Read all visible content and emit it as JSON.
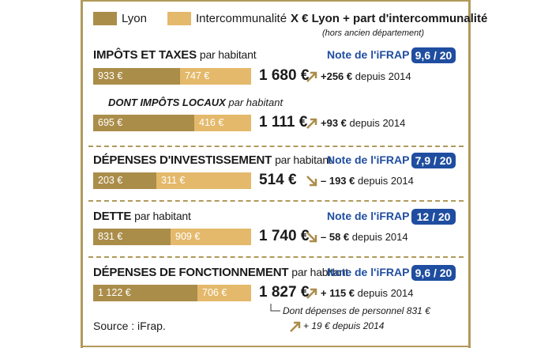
{
  "legend": {
    "lyon_label": "Lyon",
    "interco_label": "Intercommunalité",
    "x_note": "X € Lyon + part d'intercommunalité",
    "x_note_sub": "(hors ancien département)"
  },
  "colors": {
    "lyon": "#ab8d4a",
    "interco": "#e4b96b",
    "accent": "#1f4ea0",
    "frame": "#b09a5a"
  },
  "note_label": "Note de l'iFRAP",
  "sections": [
    {
      "title": "IMPÔTS ET TAXES",
      "suffix": "par habitant",
      "lyon": "933 €",
      "interco": "747 €",
      "lyon_value": 933,
      "interco_value": 747,
      "total": "1 680 €",
      "change": "+256 €",
      "change_suffix": "depuis 2014",
      "trend": "up",
      "grade": "9,6 / 20"
    },
    {
      "title": "DONT IMPÔTS LOCAUX",
      "suffix": "par habitant",
      "lyon": "695 €",
      "interco": "416 €",
      "lyon_value": 695,
      "interco_value": 416,
      "total": "1 111 €",
      "change": "+93 €",
      "change_suffix": "depuis 2014",
      "trend": "up"
    },
    {
      "title": "DÉPENSES D'INVESTISSEMENT",
      "suffix": "par habitant",
      "lyon": "203 €",
      "interco": "311 €",
      "lyon_value": 203,
      "interco_value": 311,
      "total": "514 €",
      "change": "– 193 €",
      "change_suffix": "depuis 2014",
      "trend": "down",
      "grade": "7,9 / 20"
    },
    {
      "title": "DETTE",
      "suffix": "par habitant",
      "lyon": "831 €",
      "interco": "909 €",
      "lyon_value": 831,
      "interco_value": 909,
      "total": "1 740 €",
      "change": "– 58 €",
      "change_suffix": "depuis 2014",
      "trend": "down",
      "grade": "12 / 20"
    },
    {
      "title": "DÉPENSES DE FONCTIONNEMENT",
      "suffix": "par habitant",
      "lyon": "1 122 €",
      "interco": "706 €",
      "lyon_value": 1122,
      "interco_value": 706,
      "total": "1 827 €",
      "change": "+ 115 €",
      "change_suffix": "depuis 2014",
      "trend": "up",
      "grade": "9,6 / 20"
    }
  ],
  "personnel": {
    "text": "Dont dépenses de personnel 831 €",
    "change": "+ 19 € depuis 2014"
  },
  "source": "Source : iFrap."
}
